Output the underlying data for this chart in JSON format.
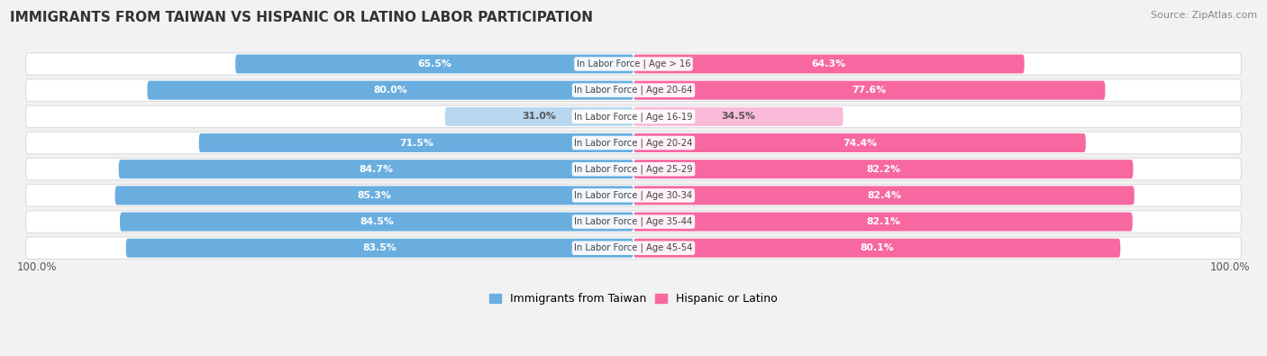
{
  "title": "IMMIGRANTS FROM TAIWAN VS HISPANIC OR LATINO LABOR PARTICIPATION",
  "source": "Source: ZipAtlas.com",
  "categories": [
    "In Labor Force | Age > 16",
    "In Labor Force | Age 20-64",
    "In Labor Force | Age 16-19",
    "In Labor Force | Age 20-24",
    "In Labor Force | Age 25-29",
    "In Labor Force | Age 30-34",
    "In Labor Force | Age 35-44",
    "In Labor Force | Age 45-54"
  ],
  "taiwan_values": [
    65.5,
    80.0,
    31.0,
    71.5,
    84.7,
    85.3,
    84.5,
    83.5
  ],
  "hispanic_values": [
    64.3,
    77.6,
    34.5,
    74.4,
    82.2,
    82.4,
    82.1,
    80.1
  ],
  "taiwan_color_normal": "#6aaee0",
  "taiwan_color_light": "#b8d8f0",
  "hispanic_color_normal": "#f768a1",
  "hispanic_color_light": "#f9bbd8",
  "taiwan_label": "Immigrants from Taiwan",
  "hispanic_label": "Hispanic or Latino",
  "background_color": "#f2f2f2",
  "row_bg_color": "#ffffff",
  "row_border_color": "#dddddd",
  "axis_label": "100.0%",
  "max_value": 100.0,
  "light_row_index": 2,
  "label_color_normal": "#ffffff",
  "label_color_light": "#555555",
  "center_label_color": "#444444"
}
